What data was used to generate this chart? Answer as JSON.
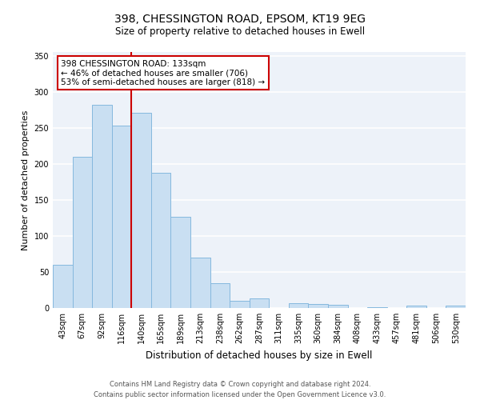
{
  "title": "398, CHESSINGTON ROAD, EPSOM, KT19 9EG",
  "subtitle": "Size of property relative to detached houses in Ewell",
  "xlabel": "Distribution of detached houses by size in Ewell",
  "ylabel": "Number of detached properties",
  "categories": [
    "43sqm",
    "67sqm",
    "92sqm",
    "116sqm",
    "140sqm",
    "165sqm",
    "189sqm",
    "213sqm",
    "238sqm",
    "262sqm",
    "287sqm",
    "311sqm",
    "335sqm",
    "360sqm",
    "384sqm",
    "408sqm",
    "433sqm",
    "457sqm",
    "481sqm",
    "506sqm",
    "530sqm"
  ],
  "values": [
    60,
    210,
    282,
    253,
    271,
    188,
    127,
    70,
    34,
    10,
    13,
    0,
    7,
    5,
    4,
    0,
    1,
    0,
    3,
    0,
    3
  ],
  "bar_color": "#c9dff2",
  "bar_edge_color": "#85b8de",
  "vline_color": "#cc0000",
  "vline_x_idx": 4,
  "annotation_title": "398 CHESSINGTON ROAD: 133sqm",
  "annotation_line1": "← 46% of detached houses are smaller (706)",
  "annotation_line2": "53% of semi-detached houses are larger (818) →",
  "annotation_box_edge": "#cc0000",
  "ylim": [
    0,
    355
  ],
  "yticks": [
    0,
    50,
    100,
    150,
    200,
    250,
    300,
    350
  ],
  "footer1": "Contains HM Land Registry data © Crown copyright and database right 2024.",
  "footer2": "Contains public sector information licensed under the Open Government Licence v3.0.",
  "bg_color": "#edf2f9",
  "grid_color": "#ffffff",
  "title_fontsize": 10,
  "subtitle_fontsize": 8.5,
  "xlabel_fontsize": 8.5,
  "ylabel_fontsize": 8,
  "tick_fontsize": 7,
  "footer_fontsize": 6,
  "annotation_fontsize": 7.5
}
